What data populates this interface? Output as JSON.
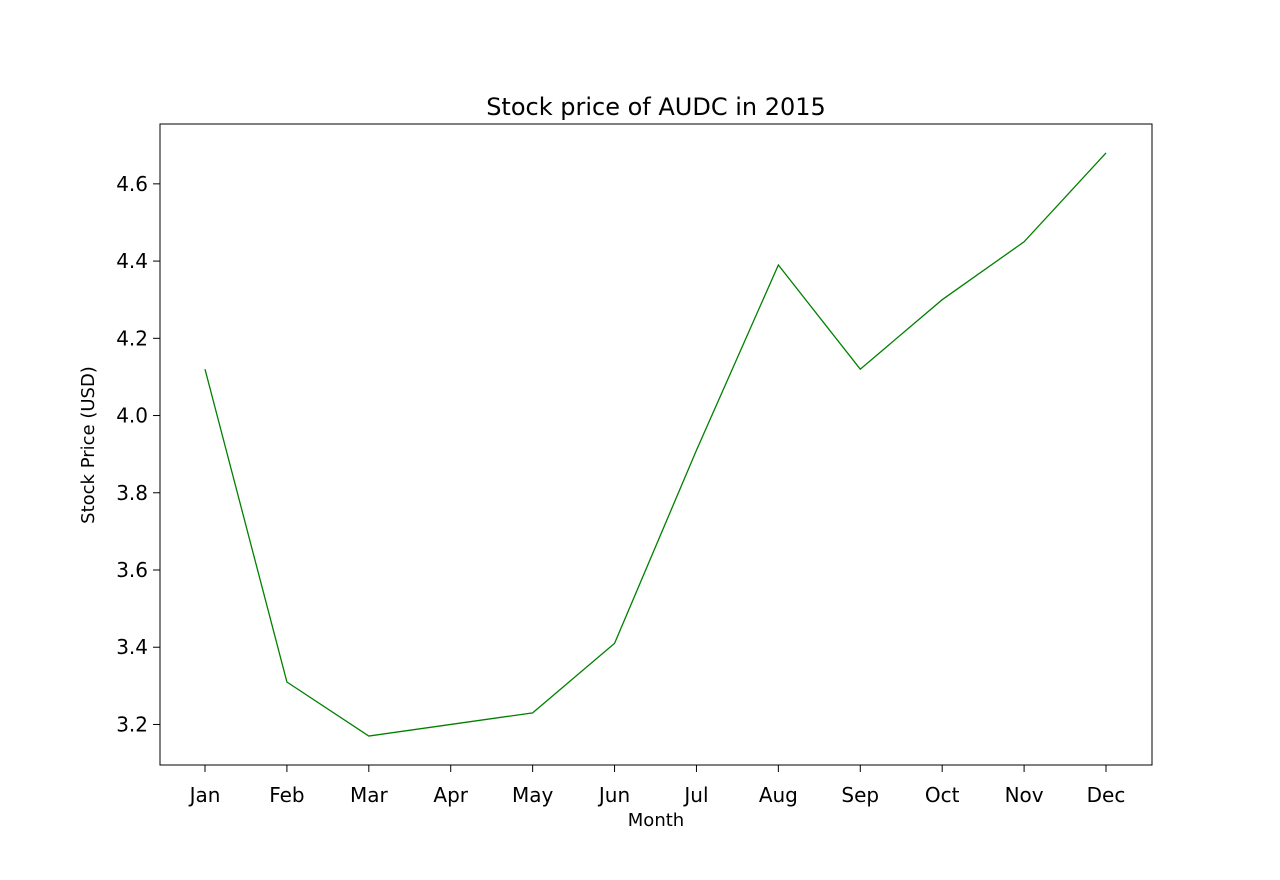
{
  "chart_data": {
    "type": "line",
    "title": "Stock price of AUDC in 2015",
    "xlabel": "Month",
    "ylabel": "Stock Price (USD)",
    "categories": [
      "Jan",
      "Feb",
      "Mar",
      "Apr",
      "May",
      "Jun",
      "Jul",
      "Aug",
      "Sep",
      "Oct",
      "Nov",
      "Dec"
    ],
    "values": [
      4.12,
      3.31,
      3.17,
      3.2,
      3.23,
      3.41,
      3.91,
      4.39,
      4.12,
      4.3,
      4.45,
      4.68
    ],
    "ylim": [
      3.095,
      4.755
    ],
    "yticks": [
      "3.2",
      "3.4",
      "3.6",
      "3.8",
      "4.0",
      "4.2",
      "4.4",
      "4.6"
    ],
    "line_color": "#008000",
    "grid": false,
    "legend": "none"
  }
}
